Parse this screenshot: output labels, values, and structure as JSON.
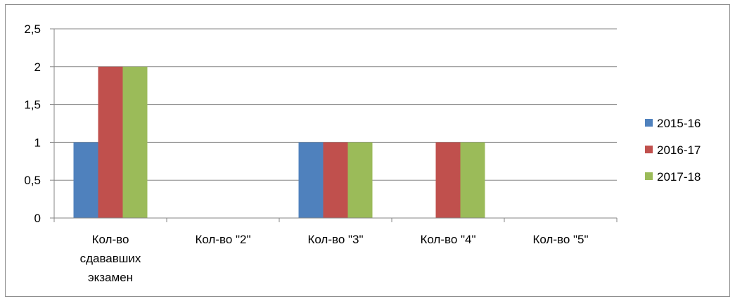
{
  "chart_data": {
    "type": "bar",
    "title": "",
    "xlabel": "",
    "ylabel": "",
    "categories": [
      [
        "Кол-во",
        "сдававших",
        "экзамен"
      ],
      [
        "Кол-во \"2\""
      ],
      [
        "Кол-во \"3\""
      ],
      [
        "Кол-во \"4\""
      ],
      [
        "Кол-во \"5\""
      ]
    ],
    "series": [
      {
        "name": "2015-16",
        "color": "#4f81bd",
        "values": [
          1,
          0,
          1,
          0,
          0
        ]
      },
      {
        "name": "2016-17",
        "color": "#c0504d",
        "values": [
          2,
          0,
          1,
          1,
          0
        ]
      },
      {
        "name": "2017-18",
        "color": "#9bbb59",
        "values": [
          2,
          0,
          1,
          1,
          0
        ]
      }
    ],
    "ylim": [
      0,
      2.5
    ],
    "yticks": [
      "0",
      "0,5",
      "1",
      "1,5",
      "2",
      "2,5"
    ],
    "grid": true,
    "legend_position": "right"
  }
}
